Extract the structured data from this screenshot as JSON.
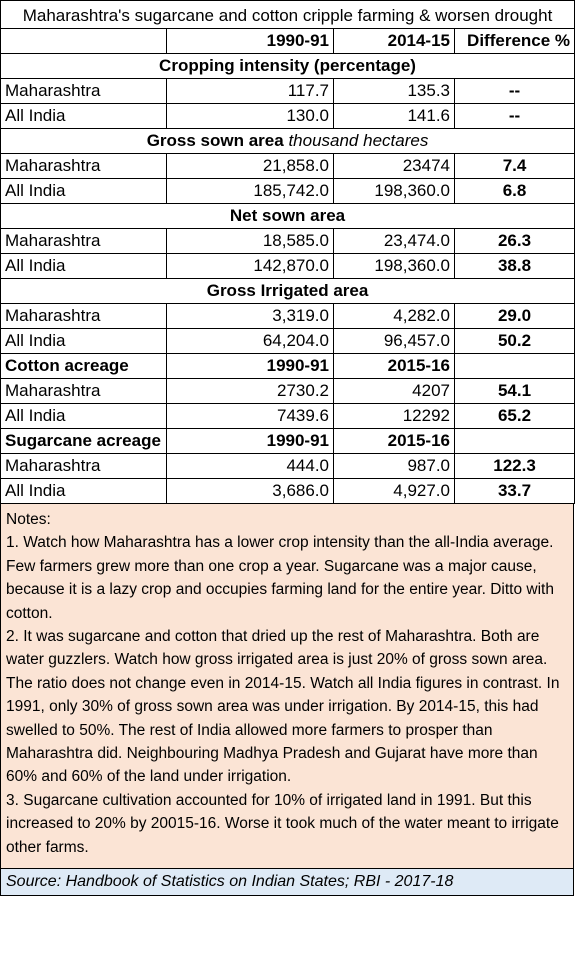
{
  "title": "Maharashtra's sugarcane and cotton  cripple farming & worsen drought",
  "header": {
    "col1": "1990-91",
    "col2": "2014-15",
    "col3": "Difference %"
  },
  "sections": {
    "cropping": {
      "label": "Cropping intensity (percentage)",
      "rows": [
        {
          "name": "Maharashtra",
          "v1": "117.7",
          "v2": "135.3",
          "diff": "--"
        },
        {
          "name": "All India",
          "v1": "130.0",
          "v2": "141.6",
          "diff": "--"
        }
      ]
    },
    "gross_sown": {
      "label": "Gross sown area",
      "unit": "thousand hectares",
      "rows": [
        {
          "name": "Maharashtra",
          "v1": "21,858.0",
          "v2": "23474",
          "diff": "7.4"
        },
        {
          "name": "All India",
          "v1": "185,742.0",
          "v2": "198,360.0",
          "diff": "6.8"
        }
      ]
    },
    "net_sown": {
      "label": "Net sown area",
      "rows": [
        {
          "name": "Maharashtra",
          "v1": "18,585.0",
          "v2": "23,474.0",
          "diff": "26.3"
        },
        {
          "name": "All India",
          "v1": "142,870.0",
          "v2": "198,360.0",
          "diff": "38.8"
        }
      ]
    },
    "irrigated": {
      "label": "Gross Irrigated area",
      "rows": [
        {
          "name": "Maharashtra",
          "v1": "3,319.0",
          "v2": "4,282.0",
          "diff": "29.0"
        },
        {
          "name": "All India",
          "v1": "64,204.0",
          "v2": "96,457.0",
          "diff": "50.2"
        }
      ]
    },
    "cotton": {
      "label": "Cotton acreage",
      "col1": "1990-91",
      "col2": "2015-16",
      "rows": [
        {
          "name": "Maharashtra",
          "v1": "2730.2",
          "v2": "4207",
          "diff": "54.1"
        },
        {
          "name": "All India",
          "v1": "7439.6",
          "v2": "12292",
          "diff": "65.2"
        }
      ]
    },
    "sugarcane": {
      "label": "Sugarcane acreage",
      "col1": "1990-91",
      "col2": "2015-16",
      "rows": [
        {
          "name": "Maharashtra",
          "v1": "444.0",
          "v2": "987.0",
          "diff": "122.3"
        },
        {
          "name": "All India",
          "v1": "3,686.0",
          "v2": "4,927.0",
          "diff": "33.7"
        }
      ]
    }
  },
  "notes": {
    "heading": "Notes:",
    "items": [
      "1. Watch how Maharashtra has a lower crop intensity than the all-India average.  Few farmers grew more than one crop a year.  Sugarcane was a major cause, because it is a lazy crop and occupies farming land for the entire year. Ditto with cotton.",
      "2. It was sugarcane and cotton that dried up the rest of Maharashtra.  Both are water guzzlers. Watch how gross irrigated area is just 20% of gross sown area.  The ratio does not change even in 2014-15.  Watch all India figures in contrast.  In 1991, only 30% of gross sown area was under irrigation.  By 2014-15, this had swelled to 50%.  The rest of India allowed more farmers to prosper than Maharashtra did.  Neighbouring Madhya Pradesh and Gujarat have more than 60% and 60% of the land under irrigation.",
      "3. Sugarcane cultivation accounted for 10% of irrigated land in 1991.  But this increased to 20% by 20015-16.  Worse it took much of the water meant to irrigate other farms."
    ]
  },
  "source": "Source: Handbook of Statistics on Indian States; RBI - 2017-18"
}
